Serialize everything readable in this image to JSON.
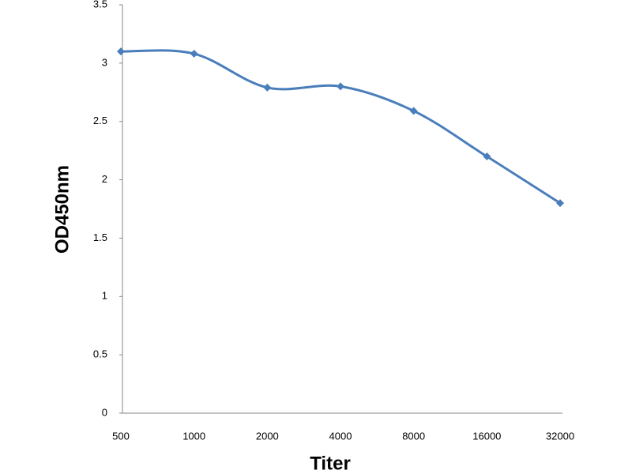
{
  "chart_data": {
    "type": "line",
    "x_label": "Titer",
    "y_label": "OD450nm",
    "categories": [
      "500",
      "1000",
      "2000",
      "4000",
      "8000",
      "16000",
      "32000"
    ],
    "series": [
      {
        "name": "OD450nm",
        "color": "#4a7ebb",
        "values": [
          3.1,
          3.08,
          2.79,
          2.8,
          2.59,
          2.2,
          1.8
        ]
      }
    ],
    "ylim": [
      0,
      3.5
    ],
    "yticks": [
      0,
      0.5,
      1,
      1.5,
      2,
      2.5,
      3,
      3.5
    ],
    "grid": false
  }
}
